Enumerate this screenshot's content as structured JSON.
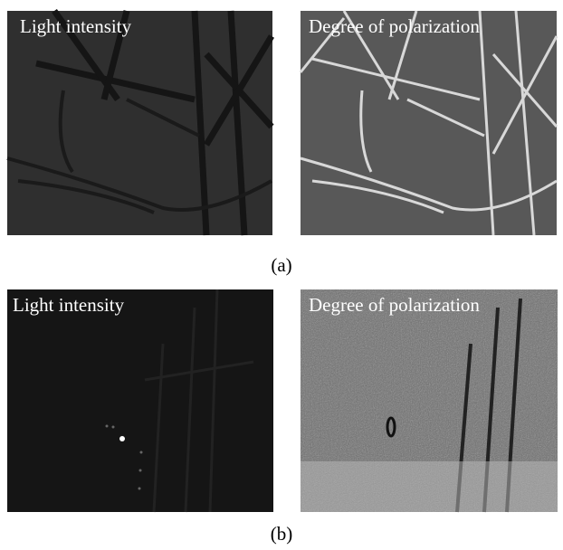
{
  "figures": [
    {
      "panels": [
        {
          "label": "Light intensity"
        },
        {
          "label": "Degree of polarization"
        }
      ],
      "caption": "(a)"
    },
    {
      "panels": [
        {
          "label": "Light intensity"
        },
        {
          "label": "Degree of polarization"
        }
      ],
      "caption": "(b)"
    }
  ]
}
